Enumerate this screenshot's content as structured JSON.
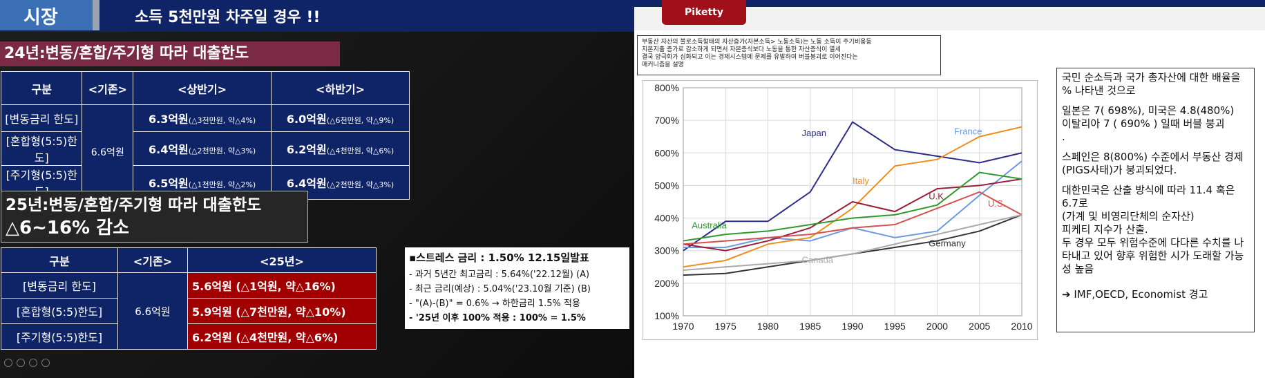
{
  "left": {
    "tab": "시장",
    "title": "소득 5천만원 차주일 경우 !!",
    "section1": "24년:변동/혼합/주기형 따라 대출한도",
    "table1": {
      "headers": [
        "구분",
        "<기존>",
        "<상반기>",
        "<하반기>"
      ],
      "base": "6.6억원",
      "rows": [
        {
          "label": "[변동금리 한도]",
          "h1_main": "6.3억원",
          "h1_sub": "(△3천만원, 약△4%)",
          "h2_main": "6.0억원",
          "h2_sub": "(△6천만원, 약△9%)"
        },
        {
          "label": "[혼합형(5:5)한도]",
          "h1_main": "6.4억원",
          "h1_sub": "(△2천만원, 약△3%)",
          "h2_main": "6.2억원",
          "h2_sub": "(△4천만원, 약△6%)"
        },
        {
          "label": "[주기형(5:5)한도]",
          "h1_main": "6.5억원",
          "h1_sub": "(△1천만원, 약△2%)",
          "h2_main": "6.4억원",
          "h2_sub": "(△2천만원, 약△3%)"
        }
      ]
    },
    "section2_line1": "25년:변동/혼합/주기형 따라 대출한도",
    "section2_line2": "△6~16% 감소",
    "table2": {
      "headers": [
        "구분",
        "<기존>",
        "<25년>"
      ],
      "base": "6.6억원",
      "rows": [
        {
          "label": "[변동금리 한도]",
          "value": "5.6억원 (△1억원, 약△16%)"
        },
        {
          "label": "[혼합형(5:5)한도]",
          "value": "5.9억원 (△7천만원, 약△10%)"
        },
        {
          "label": "[주기형(5:5)한도]",
          "value": "6.2억원 (△4천만원, 약△6%)"
        }
      ]
    },
    "stress": {
      "title": "▪스트레스 금리 : 1.50% 12.15일발표",
      "lines": [
        "- 과거 5년간 최고금리 : 5.64%('22.12월) (A)",
        "- 최근 금리(예상) : 5.04%('23.10월 기준) (B)",
        "- \"(A)-(B)\" = 0.6% → 하한금리 1.5% 적용",
        "- '25년 이후 100% 적용 :  100% = 1.5%"
      ]
    }
  },
  "right": {
    "tab": "Piketty",
    "note_lines": [
      "부동산 자산의 불로소득형태의 자산증가(자본소득> 노동소득)는 노동 소득이 주기비용등",
      "지본지출 증가로 감소하게 되면서 자본증식보다 노동을 통한 자산증식이 열세",
      "결국 양극화가 심화되고 이는 경제시스템에 문제를 유발하여 버블붕괴로 이어진다는",
      "매커니즘을 설명"
    ],
    "textbox": [
      "국민 순소득과 국가 총자산에  대한 배율을 % 나타낸 것으로",
      "일본은 7( 698%), 미국은 4.8(480%)",
      "이탈리아 7 ( 690% ) 일때 버블 붕괴",
      ".",
      "스페인은 8(800%) 수준에서 부동산 경제(PIGS사태)가 붕괴되었다.",
      "대한민국은 산출 방식에 따라 11.4 혹은 6.7로",
      "(가계 및 비영리단체의 순자산)",
      "피케티 지수가 산출.",
      "두 경우 모두 위험수준에 다다른 수치를 나타내고 있어 향후 위험한 시가 도래할 가능성  높음",
      "➔ IMF,OECD, Economist  경고"
    ]
  },
  "chart_data": {
    "type": "line",
    "x": [
      1970,
      1975,
      1980,
      1985,
      1990,
      1995,
      2000,
      2005,
      2010
    ],
    "xlim": [
      1970,
      2010
    ],
    "ylim": [
      100,
      800
    ],
    "yticks": [
      "100%",
      "200%",
      "300%",
      "400%",
      "500%",
      "600%",
      "700%",
      "800%"
    ],
    "xticks": [
      "1970",
      "1975",
      "1980",
      "1985",
      "1990",
      "1995",
      "2000",
      "2005",
      "2010"
    ],
    "grid": true,
    "series": [
      {
        "name": "Japan",
        "color": "#2b2b8a",
        "values": [
          300,
          390,
          390,
          480,
          695,
          610,
          590,
          570,
          600
        ]
      },
      {
        "name": "France",
        "color": "#6a9ae0",
        "values": [
          310,
          310,
          340,
          330,
          370,
          340,
          360,
          470,
          575
        ]
      },
      {
        "name": "Italy",
        "color": "#f08c1e",
        "values": [
          250,
          270,
          320,
          340,
          430,
          560,
          580,
          650,
          680
        ]
      },
      {
        "name": "U.K.",
        "color": "#9a1e36",
        "values": [
          320,
          300,
          330,
          370,
          450,
          420,
          490,
          500,
          520
        ]
      },
      {
        "name": "U.S.",
        "color": "#d65050",
        "values": [
          320,
          330,
          340,
          350,
          370,
          380,
          430,
          480,
          410
        ]
      },
      {
        "name": "Australia",
        "color": "#2e9a2e",
        "values": [
          330,
          350,
          360,
          380,
          400,
          410,
          440,
          540,
          520
        ]
      },
      {
        "name": "Germany",
        "color": "#333333",
        "values": [
          225,
          230,
          250,
          270,
          290,
          310,
          330,
          360,
          410
        ]
      },
      {
        "name": "Canada",
        "color": "#aaaaaa",
        "values": [
          240,
          250,
          260,
          270,
          290,
          320,
          350,
          380,
          410
        ]
      }
    ]
  }
}
